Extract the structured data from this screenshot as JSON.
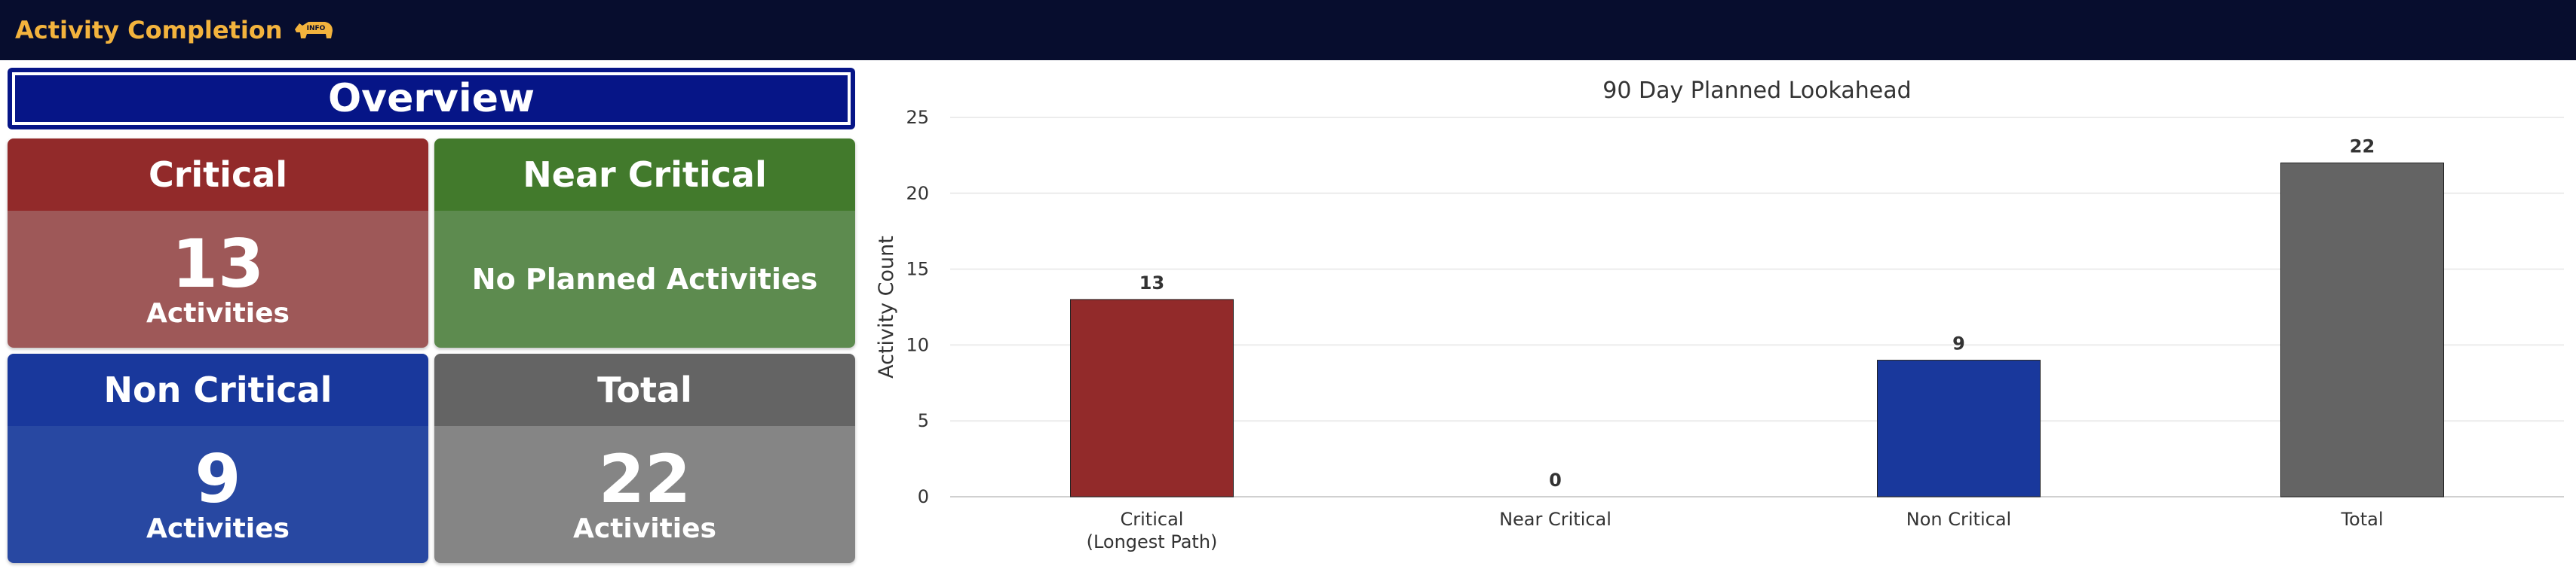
{
  "header": {
    "title": "Activity Completion",
    "info_badge": "INFO",
    "info_icon": "rhino-info-icon",
    "background": "#070d2e",
    "accent": "#f3b33d"
  },
  "overview": {
    "title": "Overview"
  },
  "cards": {
    "critical": {
      "title": "Critical",
      "count": "13",
      "unit": "Activities",
      "color": "#922a2a"
    },
    "near_critical": {
      "title": "Near Critical",
      "message": "No Planned Activities",
      "color": "#427a2c"
    },
    "non_critical": {
      "title": "Non Critical",
      "count": "9",
      "unit": "Activities",
      "color": "#19389c"
    },
    "total": {
      "title": "Total",
      "count": "22",
      "unit": "Activities",
      "color": "#646464"
    }
  },
  "chart_data": {
    "type": "bar",
    "title": "90 Day Planned Lookahead",
    "xlabel": "",
    "ylabel": "Activity Count",
    "ylim": [
      0,
      25
    ],
    "yticks": [
      0,
      5,
      10,
      15,
      20,
      25
    ],
    "grid": true,
    "legend": "none",
    "categories": [
      {
        "lines": [
          "Critical",
          "(Longest Path)"
        ]
      },
      {
        "lines": [
          "Near Critical"
        ]
      },
      {
        "lines": [
          "Non Critical"
        ]
      },
      {
        "lines": [
          "Total"
        ]
      }
    ],
    "values": [
      13,
      0,
      9,
      22
    ],
    "colors": [
      "#922a2a",
      "#427a2c",
      "#19389c",
      "#646464"
    ]
  }
}
